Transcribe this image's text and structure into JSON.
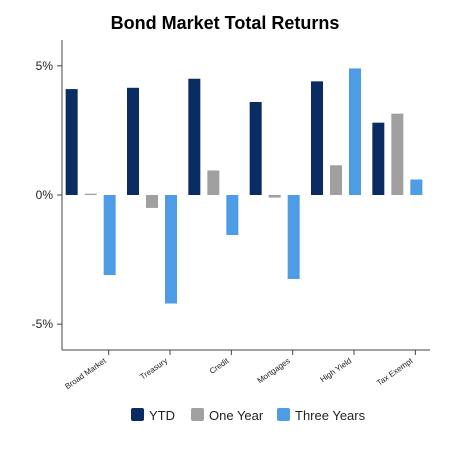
{
  "chart_data": {
    "type": "bar",
    "title": "Bond Market Total Returns",
    "categories": [
      "Broad Market",
      "Treasury",
      "Credit",
      "Mortgages",
      "High Yield",
      "Tax Exempt"
    ],
    "series": [
      {
        "name": "YTD",
        "color": "#0b2b63",
        "values": [
          4.1,
          4.15,
          4.5,
          3.6,
          4.4,
          2.8
        ]
      },
      {
        "name": "One Year",
        "color": "#a0a0a0",
        "values": [
          0.05,
          -0.5,
          0.95,
          -0.1,
          1.15,
          3.15
        ]
      },
      {
        "name": "Three Years",
        "color": "#4e9ce6",
        "values": [
          -3.1,
          -4.2,
          -1.55,
          -3.25,
          4.9,
          0.6
        ]
      }
    ],
    "ylim": [
      -6,
      6
    ],
    "yticks": [
      {
        "value": 5,
        "label": "5%"
      },
      {
        "value": 0,
        "label": "0%"
      },
      {
        "value": -5,
        "label": "-5%"
      }
    ],
    "xlabel": "",
    "ylabel": "",
    "grid": false,
    "legend_position": "bottom"
  }
}
